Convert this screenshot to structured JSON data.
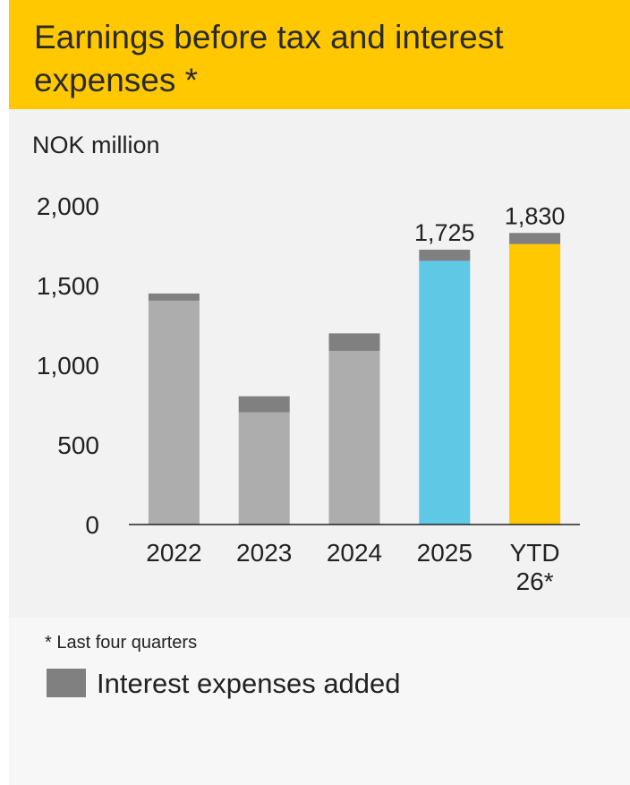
{
  "title": "Earnings before tax and interest expenses *",
  "unit_label": "NOK million",
  "footnote": "* Last four quarters",
  "legend": {
    "label": "Interest expenses added",
    "color": "#808080"
  },
  "colors": {
    "header": "#ffc800",
    "base_gray": "#adadad",
    "interest": "#808080",
    "y2025": "#5ec8e5",
    "ytd": "#ffc800"
  },
  "chart_data": {
    "type": "bar",
    "stacked": true,
    "categories": [
      "2022",
      "2023",
      "2024",
      "2025",
      "YTD 26*"
    ],
    "series": [
      {
        "values": [
          1405,
          705,
          1090,
          1655,
          1760
        ],
        "colors": [
          "#adadad",
          "#adadad",
          "#adadad",
          "#5ec8e5",
          "#ffc800"
        ]
      },
      {
        "name": "Interest expenses added",
        "values": [
          45,
          100,
          110,
          70,
          70
        ],
        "color": "#808080"
      }
    ],
    "total_labels": [
      "",
      "",
      "",
      "1,725",
      "1,830"
    ],
    "y_ticks": [
      0,
      500,
      1000,
      1500,
      2000
    ],
    "y_tick_labels": [
      "0",
      "500",
      "1,000",
      "1,500",
      "2,000"
    ],
    "ylim": [
      0,
      2000
    ],
    "grid": false,
    "legend_position": "bottom-left"
  }
}
